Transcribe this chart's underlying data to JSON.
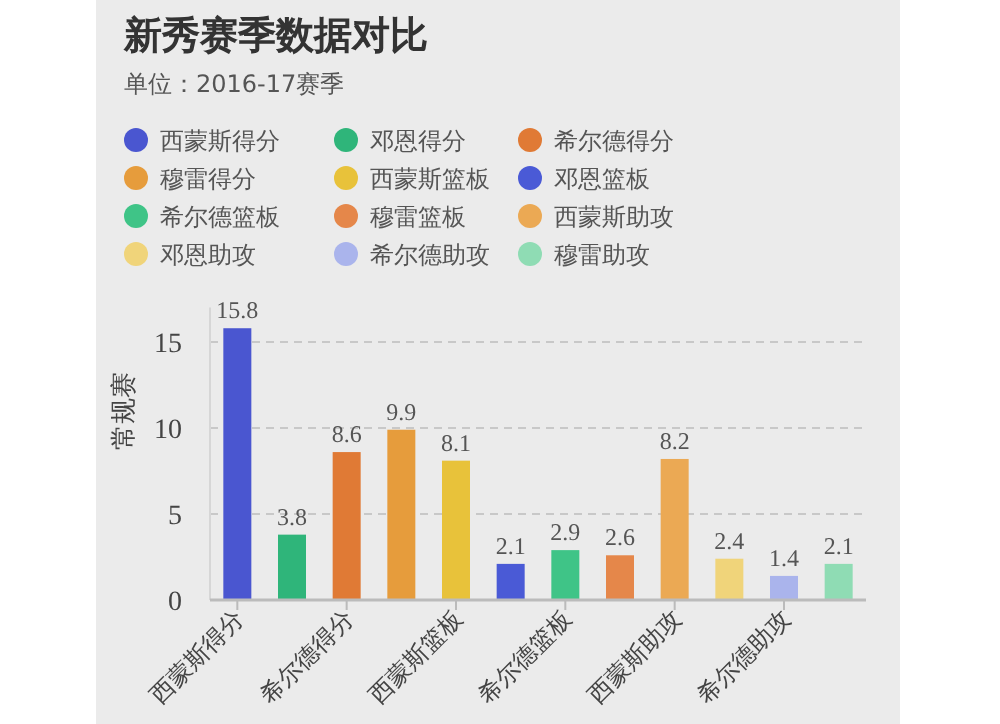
{
  "chart_data": {
    "type": "bar",
    "title": "新秀赛季数据对比",
    "subtitle": "单位：2016-17赛季",
    "ylabel": "常规赛",
    "categories": [
      "西蒙斯得分",
      null,
      "希尔德得分",
      null,
      "西蒙斯篮板",
      null,
      "希尔德篮板",
      null,
      "西蒙斯助攻",
      null,
      "希尔德助攻",
      null
    ],
    "series": [
      {
        "name": "西蒙斯得分",
        "color": "#4a56d0",
        "values": [
          15.8,
          null,
          null,
          null,
          null,
          null,
          null,
          null,
          null,
          null,
          null,
          null
        ]
      },
      {
        "name": "邓恩得分",
        "color": "#2fb57a",
        "values": [
          null,
          3.8,
          null,
          null,
          null,
          null,
          null,
          null,
          null,
          null,
          null,
          null
        ]
      },
      {
        "name": "希尔德得分",
        "color": "#e07a35",
        "values": [
          null,
          null,
          8.6,
          null,
          null,
          null,
          null,
          null,
          null,
          null,
          null,
          null
        ]
      },
      {
        "name": "穆雷得分",
        "color": "#e69c3c",
        "values": [
          null,
          null,
          null,
          9.9,
          null,
          null,
          null,
          null,
          null,
          null,
          null,
          null
        ]
      },
      {
        "name": "西蒙斯篮板",
        "color": "#e8c23a",
        "values": [
          null,
          null,
          null,
          null,
          8.1,
          null,
          null,
          null,
          null,
          null,
          null,
          null
        ]
      },
      {
        "name": "邓恩篮板",
        "color": "#4a5ad6",
        "values": [
          null,
          null,
          null,
          null,
          null,
          2.1,
          null,
          null,
          null,
          null,
          null,
          null
        ]
      },
      {
        "name": "希尔德篮板",
        "color": "#3fc487",
        "values": [
          null,
          null,
          null,
          null,
          null,
          null,
          2.9,
          null,
          null,
          null,
          null,
          null
        ]
      },
      {
        "name": "穆雷篮板",
        "color": "#e5874a",
        "values": [
          null,
          null,
          null,
          null,
          null,
          null,
          null,
          2.6,
          null,
          null,
          null,
          null
        ]
      },
      {
        "name": "西蒙斯助攻",
        "color": "#eba954",
        "values": [
          null,
          null,
          null,
          null,
          null,
          null,
          null,
          null,
          8.2,
          null,
          null,
          null
        ]
      },
      {
        "name": "邓恩助攻",
        "color": "#f0d47a",
        "values": [
          null,
          null,
          null,
          null,
          null,
          null,
          null,
          null,
          null,
          2.4,
          null,
          null
        ]
      },
      {
        "name": "希尔德助攻",
        "color": "#aab4ec",
        "values": [
          null,
          null,
          null,
          null,
          null,
          null,
          null,
          null,
          null,
          null,
          1.4,
          null
        ]
      },
      {
        "name": "穆雷助攻",
        "color": "#8fdcb4",
        "values": [
          null,
          null,
          null,
          null,
          null,
          null,
          null,
          null,
          null,
          null,
          null,
          2.1
        ]
      }
    ],
    "ylim": [
      0,
      17
    ],
    "yticks": [
      0,
      5,
      10,
      15
    ],
    "grid": "y",
    "legend": "top",
    "data_labels": true
  }
}
